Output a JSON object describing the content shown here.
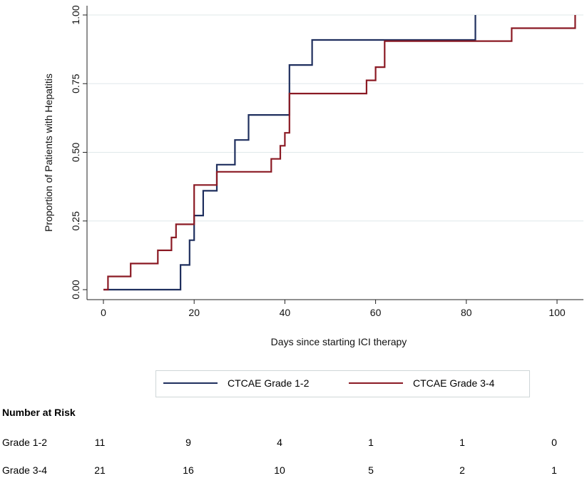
{
  "chart_data": {
    "type": "step",
    "xlabel": "Days since starting ICI therapy",
    "ylabel": "Proportion of Patients with Hepatitis",
    "xlim": [
      0,
      105
    ],
    "ylim": [
      0,
      1
    ],
    "x_ticks": [
      "0",
      "20",
      "40",
      "60",
      "80",
      "100"
    ],
    "y_ticks": [
      "0.00",
      "0.25",
      "0.50",
      "0.75",
      "1.00"
    ],
    "grid": "horizontal",
    "series": [
      {
        "name": "CTCAE Grade 1-2",
        "color": "#1f2f5e",
        "points": [
          [
            0,
            0
          ],
          [
            17,
            0
          ],
          [
            17,
            0.09
          ],
          [
            19,
            0.09
          ],
          [
            19,
            0.18
          ],
          [
            20,
            0.18
          ],
          [
            20,
            0.27
          ],
          [
            22,
            0.27
          ],
          [
            22,
            0.36
          ],
          [
            25,
            0.36
          ],
          [
            25,
            0.455
          ],
          [
            29,
            0.455
          ],
          [
            29,
            0.545
          ],
          [
            32,
            0.545
          ],
          [
            32,
            0.636
          ],
          [
            41,
            0.636
          ],
          [
            41,
            0.818
          ],
          [
            46,
            0.818
          ],
          [
            46,
            0.909
          ],
          [
            82,
            0.909
          ],
          [
            82,
            1.0
          ]
        ]
      },
      {
        "name": "CTCAE Grade 3-4",
        "color": "#8b1a24",
        "points": [
          [
            0,
            0
          ],
          [
            1,
            0
          ],
          [
            1,
            0.048
          ],
          [
            6,
            0.048
          ],
          [
            6,
            0.095
          ],
          [
            12,
            0.095
          ],
          [
            12,
            0.143
          ],
          [
            15,
            0.143
          ],
          [
            15,
            0.19
          ],
          [
            16,
            0.19
          ],
          [
            16,
            0.238
          ],
          [
            20,
            0.238
          ],
          [
            20,
            0.381
          ],
          [
            25,
            0.381
          ],
          [
            25,
            0.429
          ],
          [
            37,
            0.429
          ],
          [
            37,
            0.476
          ],
          [
            39,
            0.476
          ],
          [
            39,
            0.524
          ],
          [
            40,
            0.524
          ],
          [
            40,
            0.571
          ],
          [
            41,
            0.571
          ],
          [
            41,
            0.714
          ],
          [
            58,
            0.714
          ],
          [
            58,
            0.762
          ],
          [
            60,
            0.762
          ],
          [
            60,
            0.81
          ],
          [
            62,
            0.81
          ],
          [
            62,
            0.905
          ],
          [
            90,
            0.905
          ],
          [
            90,
            0.952
          ],
          [
            104,
            0.952
          ],
          [
            104,
            1.0
          ]
        ]
      }
    ]
  },
  "legend": {
    "items": [
      {
        "label": "CTCAE Grade 1-2",
        "color": "#1f2f5e"
      },
      {
        "label": "CTCAE Grade 3-4",
        "color": "#8b1a24"
      }
    ]
  },
  "risk_table": {
    "title": "Number at Risk",
    "rows": [
      {
        "label": "Grade 1-2",
        "values": [
          "11",
          "9",
          "4",
          "1",
          "1",
          "0"
        ]
      },
      {
        "label": "Grade 3-4",
        "values": [
          "21",
          "16",
          "10",
          "5",
          "2",
          "1"
        ]
      }
    ]
  }
}
